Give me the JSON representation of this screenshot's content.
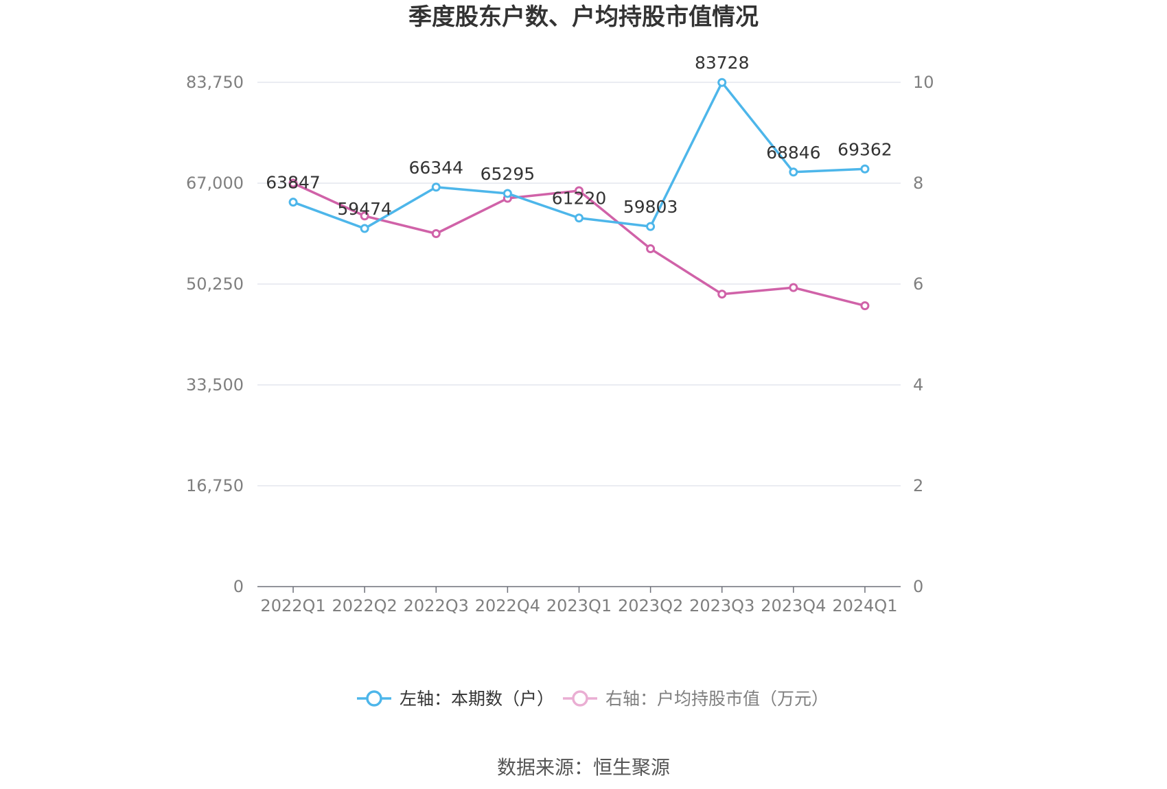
{
  "chart_data": {
    "type": "line",
    "title": "季度股东户数、户均持股市值情况",
    "categories": [
      "2022Q1",
      "2022Q2",
      "2022Q3",
      "2022Q4",
      "2023Q1",
      "2023Q2",
      "2023Q3",
      "2023Q4",
      "2024Q1"
    ],
    "left_axis": {
      "min": 0,
      "max": 83750,
      "ticks": [
        "0",
        "16,750",
        "33,500",
        "50,250",
        "67,000",
        "83,750"
      ],
      "tick_values": [
        0,
        16750,
        33500,
        50250,
        67000,
        83750
      ]
    },
    "right_axis": {
      "min": 0,
      "max": 10,
      "ticks": [
        "0",
        "2",
        "4",
        "6",
        "8",
        "10"
      ],
      "tick_values": [
        0,
        2,
        4,
        6,
        8,
        10
      ]
    },
    "grid": true,
    "legend_position": "bottom",
    "series": [
      {
        "name": "左轴：本期数（户）",
        "axis": "left",
        "color": "#4db6ea",
        "values": [
          63847,
          59474,
          66344,
          65295,
          61220,
          59803,
          83728,
          68846,
          69362
        ],
        "labels": [
          "63847",
          "59474",
          "66344",
          "65295",
          "61220",
          "59803",
          "83728",
          "68846",
          "69362"
        ]
      },
      {
        "name": "右轴：户均持股市值（万元）",
        "axis": "right",
        "color": "#d062a8",
        "values": [
          8.0,
          7.35,
          7.0,
          7.7,
          7.85,
          6.7,
          5.8,
          5.93,
          5.57
        ]
      }
    ]
  },
  "source": "数据来源：恒生聚源"
}
